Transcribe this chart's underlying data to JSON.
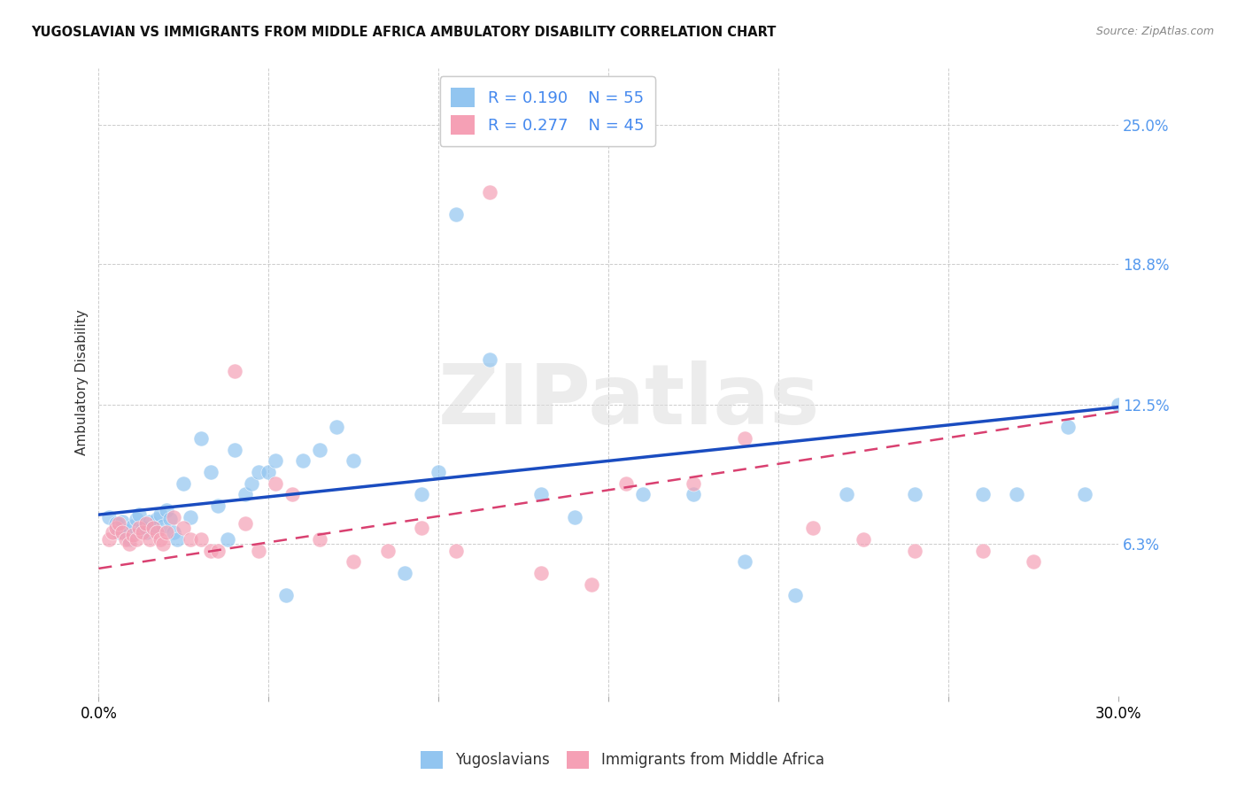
{
  "title": "YUGOSLAVIAN VS IMMIGRANTS FROM MIDDLE AFRICA AMBULATORY DISABILITY CORRELATION CHART",
  "source": "Source: ZipAtlas.com",
  "ylabel": "Ambulatory Disability",
  "xlim": [
    0.0,
    0.3
  ],
  "ylim": [
    -0.005,
    0.275
  ],
  "ytick_vals": [
    0.063,
    0.125,
    0.188,
    0.25
  ],
  "ytick_labels": [
    "6.3%",
    "12.5%",
    "18.8%",
    "25.0%"
  ],
  "xtick_vals": [
    0.0,
    0.05,
    0.1,
    0.15,
    0.2,
    0.25,
    0.3
  ],
  "xtick_labels": [
    "0.0%",
    "",
    "",
    "",
    "",
    "",
    "30.0%"
  ],
  "R1": 0.19,
  "N1": 55,
  "R2": 0.277,
  "N2": 45,
  "blue_color": "#92C5F0",
  "pink_color": "#F5A0B5",
  "trend_blue": "#1A4CC0",
  "trend_pink": "#D94070",
  "label1": "Yugoslavians",
  "label2": "Immigrants from Middle Africa",
  "watermark_text": "ZIPatlas",
  "blue_x": [
    0.003,
    0.005,
    0.006,
    0.007,
    0.008,
    0.009,
    0.01,
    0.011,
    0.012,
    0.013,
    0.014,
    0.015,
    0.016,
    0.017,
    0.018,
    0.019,
    0.02,
    0.021,
    0.022,
    0.023,
    0.025,
    0.027,
    0.03,
    0.033,
    0.035,
    0.038,
    0.04,
    0.043,
    0.045,
    0.047,
    0.05,
    0.052,
    0.055,
    0.06,
    0.065,
    0.07,
    0.075,
    0.09,
    0.095,
    0.1,
    0.105,
    0.115,
    0.13,
    0.14,
    0.16,
    0.175,
    0.19,
    0.205,
    0.22,
    0.24,
    0.26,
    0.27,
    0.285,
    0.29,
    0.3
  ],
  "blue_y": [
    0.075,
    0.072,
    0.068,
    0.073,
    0.069,
    0.065,
    0.071,
    0.074,
    0.076,
    0.07,
    0.068,
    0.073,
    0.07,
    0.074,
    0.076,
    0.071,
    0.078,
    0.074,
    0.068,
    0.065,
    0.09,
    0.075,
    0.11,
    0.095,
    0.08,
    0.065,
    0.105,
    0.085,
    0.09,
    0.095,
    0.095,
    0.1,
    0.04,
    0.1,
    0.105,
    0.115,
    0.1,
    0.05,
    0.085,
    0.095,
    0.21,
    0.145,
    0.085,
    0.075,
    0.085,
    0.085,
    0.055,
    0.04,
    0.085,
    0.085,
    0.085,
    0.085,
    0.115,
    0.085,
    0.125
  ],
  "pink_x": [
    0.003,
    0.004,
    0.005,
    0.006,
    0.007,
    0.008,
    0.009,
    0.01,
    0.011,
    0.012,
    0.013,
    0.014,
    0.015,
    0.016,
    0.017,
    0.018,
    0.019,
    0.02,
    0.022,
    0.025,
    0.027,
    0.03,
    0.033,
    0.035,
    0.04,
    0.043,
    0.047,
    0.052,
    0.057,
    0.065,
    0.075,
    0.085,
    0.095,
    0.105,
    0.115,
    0.13,
    0.145,
    0.155,
    0.175,
    0.19,
    0.21,
    0.225,
    0.24,
    0.26,
    0.275
  ],
  "pink_y": [
    0.065,
    0.068,
    0.07,
    0.072,
    0.068,
    0.065,
    0.063,
    0.067,
    0.065,
    0.07,
    0.068,
    0.072,
    0.065,
    0.07,
    0.068,
    0.065,
    0.063,
    0.068,
    0.075,
    0.07,
    0.065,
    0.065,
    0.06,
    0.06,
    0.14,
    0.072,
    0.06,
    0.09,
    0.085,
    0.065,
    0.055,
    0.06,
    0.07,
    0.06,
    0.22,
    0.05,
    0.045,
    0.09,
    0.09,
    0.11,
    0.07,
    0.065,
    0.06,
    0.06,
    0.055
  ]
}
